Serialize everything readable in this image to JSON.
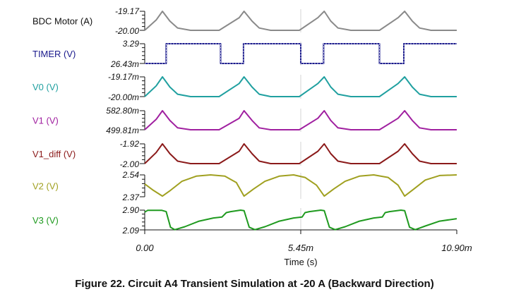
{
  "caption": "Figure 22. Circuit A4 Transient Simulation at -20 A (Backward Direction)",
  "chart_data": {
    "type": "line",
    "title": "",
    "xlabel": "Time (s)",
    "xlim": [
      0,
      10.9
    ],
    "x_unit": "ms",
    "x_ticks": [
      "0.00",
      "5.45m",
      "10.90m"
    ],
    "grid": true,
    "series": [
      {
        "name": "BDC Motor (A)",
        "color": "#8a8a8a",
        "y_ticks": [
          "-19.17",
          "-20.00"
        ],
        "ylim": [
          -20.0,
          -19.17
        ],
        "x": [
          0,
          0.4,
          0.62,
          0.88,
          1.15,
          1.6,
          2.6,
          3.3,
          3.47,
          3.75,
          4.0,
          4.4,
          5.4,
          6.05,
          6.27,
          6.5,
          6.75,
          7.2,
          8.2,
          8.85,
          9.08,
          9.35,
          9.6,
          10.0,
          10.9
        ],
        "values": [
          -20.0,
          -19.55,
          -19.17,
          -19.6,
          -19.9,
          -20.0,
          -20.0,
          -19.45,
          -19.17,
          -19.6,
          -19.9,
          -20.0,
          -20.0,
          -19.45,
          -19.17,
          -19.6,
          -19.9,
          -20.0,
          -20.0,
          -19.45,
          -19.17,
          -19.6,
          -19.9,
          -20.0,
          -20.0
        ]
      },
      {
        "name": "TIMER (V)",
        "color": "#1a1a8c",
        "y_ticks": [
          "3.29",
          "26.43m"
        ],
        "ylim": [
          0.02643,
          3.29
        ],
        "x": [
          0,
          0.75,
          0.75,
          2.65,
          2.65,
          3.45,
          3.45,
          5.45,
          5.45,
          6.25,
          6.25,
          8.2,
          8.2,
          9.05,
          9.05,
          10.9
        ],
        "values": [
          0.02643,
          0.02643,
          3.29,
          3.29,
          0.02643,
          0.02643,
          3.29,
          3.29,
          0.02643,
          0.02643,
          3.29,
          3.29,
          0.02643,
          0.02643,
          3.29,
          3.29
        ]
      },
      {
        "name": "V0 (V)",
        "color": "#20a0a0",
        "y_ticks": [
          "-19.17m",
          "-20.00m"
        ],
        "ylim": [
          -20.0,
          -19.17
        ],
        "x": [
          0,
          0.4,
          0.62,
          0.88,
          1.15,
          1.6,
          2.6,
          3.3,
          3.47,
          3.75,
          4.0,
          4.4,
          5.4,
          6.05,
          6.27,
          6.5,
          6.75,
          7.2,
          8.2,
          8.85,
          9.08,
          9.35,
          9.6,
          10.0,
          10.9
        ],
        "values": [
          -20.0,
          -19.55,
          -19.17,
          -19.6,
          -19.9,
          -20.0,
          -20.0,
          -19.45,
          -19.17,
          -19.6,
          -19.9,
          -20.0,
          -20.0,
          -19.45,
          -19.17,
          -19.6,
          -19.9,
          -20.0,
          -20.0,
          -19.45,
          -19.17,
          -19.6,
          -19.9,
          -20.0,
          -20.0
        ]
      },
      {
        "name": "V1 (V)",
        "color": "#a020a0",
        "y_ticks": [
          "582.80m",
          "499.81m"
        ],
        "ylim": [
          499.81,
          582.8
        ],
        "x": [
          0,
          0.4,
          0.62,
          0.88,
          1.15,
          1.6,
          2.6,
          3.3,
          3.47,
          3.75,
          4.0,
          4.4,
          5.4,
          6.05,
          6.27,
          6.5,
          6.75,
          7.2,
          8.2,
          8.85,
          9.08,
          9.35,
          9.6,
          10.0,
          10.9
        ],
        "values": [
          499.81,
          545,
          582.8,
          540,
          508,
          499.81,
          499.81,
          550,
          582.8,
          540,
          508,
          499.81,
          499.81,
          550,
          582.8,
          540,
          508,
          499.81,
          499.81,
          550,
          582.8,
          540,
          508,
          499.81,
          499.81
        ]
      },
      {
        "name": "V1_diff (V)",
        "color": "#8b1a1a",
        "y_ticks": [
          "-1.92",
          "-2.00"
        ],
        "ylim": [
          -2.0,
          -1.92
        ],
        "x": [
          0,
          0.4,
          0.62,
          0.88,
          1.15,
          1.6,
          2.6,
          3.3,
          3.47,
          3.75,
          4.0,
          4.4,
          5.4,
          6.05,
          6.27,
          6.5,
          6.75,
          7.2,
          8.2,
          8.85,
          9.08,
          9.35,
          9.6,
          10.0,
          10.9
        ],
        "values": [
          -2.0,
          -1.955,
          -1.92,
          -1.96,
          -1.99,
          -2.0,
          -2.0,
          -1.95,
          -1.92,
          -1.96,
          -1.99,
          -2.0,
          -2.0,
          -1.95,
          -1.92,
          -1.96,
          -1.99,
          -2.0,
          -2.0,
          -1.95,
          -1.92,
          -1.96,
          -1.99,
          -2.0,
          -2.0
        ]
      },
      {
        "name": "V2 (V)",
        "color": "#a0a020",
        "y_ticks": [
          "2.54",
          "2.37"
        ],
        "ylim": [
          2.37,
          2.54
        ],
        "x": [
          0,
          0.3,
          0.62,
          0.9,
          1.3,
          1.8,
          2.3,
          2.8,
          3.2,
          3.47,
          3.8,
          4.2,
          4.7,
          5.2,
          5.6,
          6.0,
          6.27,
          6.6,
          7.0,
          7.5,
          8.0,
          8.5,
          8.85,
          9.08,
          9.4,
          9.8,
          10.3,
          10.9
        ],
        "values": [
          2.47,
          2.42,
          2.375,
          2.42,
          2.49,
          2.53,
          2.54,
          2.53,
          2.48,
          2.375,
          2.43,
          2.49,
          2.53,
          2.54,
          2.52,
          2.46,
          2.375,
          2.43,
          2.49,
          2.53,
          2.54,
          2.52,
          2.46,
          2.375,
          2.43,
          2.5,
          2.535,
          2.54
        ]
      },
      {
        "name": "V3 (V)",
        "color": "#1f9a1f",
        "y_ticks": [
          "2.90",
          "2.09"
        ],
        "ylim": [
          2.09,
          2.9
        ],
        "x": [
          0,
          0.1,
          0.6,
          0.75,
          0.9,
          1.05,
          1.4,
          1.9,
          2.4,
          2.7,
          2.85,
          3.0,
          3.35,
          3.47,
          3.65,
          3.85,
          4.2,
          4.7,
          5.2,
          5.5,
          5.6,
          5.75,
          6.15,
          6.27,
          6.45,
          6.65,
          7.0,
          7.5,
          8.0,
          8.3,
          8.4,
          8.55,
          8.95,
          9.08,
          9.25,
          9.45,
          9.8,
          10.3,
          10.9
        ],
        "values": [
          2.82,
          2.89,
          2.89,
          2.84,
          2.2,
          2.1,
          2.22,
          2.45,
          2.58,
          2.62,
          2.8,
          2.84,
          2.9,
          2.88,
          2.2,
          2.1,
          2.22,
          2.45,
          2.58,
          2.62,
          2.8,
          2.84,
          2.9,
          2.88,
          2.2,
          2.1,
          2.22,
          2.45,
          2.58,
          2.62,
          2.8,
          2.84,
          2.9,
          2.88,
          2.2,
          2.1,
          2.25,
          2.45,
          2.55
        ]
      }
    ]
  }
}
